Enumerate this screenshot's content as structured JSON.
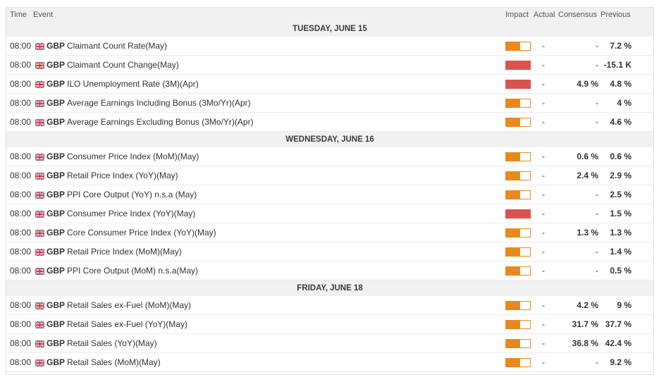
{
  "headers": {
    "time": "Time",
    "event": "Event",
    "impact": "Impact",
    "actual": "Actual",
    "consensus": "Consensus",
    "previous": "Previous"
  },
  "colors": {
    "medium_impact": "#e8891e",
    "high_impact": "#d9534f"
  },
  "flag_icon": "uk-flag-icon",
  "days": [
    {
      "label": "TUESDAY, JUNE 15",
      "events": [
        {
          "time": "08:00",
          "currency": "GBP",
          "name": "Claimant Count Rate(May)",
          "impact": "medium",
          "impact_level": 0.6,
          "actual": "-",
          "consensus": "-",
          "previous": "7.2 %"
        },
        {
          "time": "08:00",
          "currency": "GBP",
          "name": "Claimant Count Change(May)",
          "impact": "high",
          "impact_level": 1,
          "actual": "-",
          "consensus": "-",
          "previous": "-15.1 K"
        },
        {
          "time": "08:00",
          "currency": "GBP",
          "name": "ILO Unemployment Rate (3M)(Apr)",
          "impact": "high",
          "impact_level": 1,
          "actual": "-",
          "consensus": "4.9 %",
          "previous": "4.8 %"
        },
        {
          "time": "08:00",
          "currency": "GBP",
          "name": "Average Earnings Including Bonus (3Mo/Yr)(Apr)",
          "impact": "medium",
          "impact_level": 0.6,
          "actual": "-",
          "consensus": "-",
          "previous": "4 %"
        },
        {
          "time": "08:00",
          "currency": "GBP",
          "name": "Average Earnings Excluding Bonus (3Mo/Yr)(Apr)",
          "impact": "medium",
          "impact_level": 0.6,
          "actual": "-",
          "consensus": "-",
          "previous": "4.6 %"
        }
      ]
    },
    {
      "label": "WEDNESDAY, JUNE 16",
      "events": [
        {
          "time": "08:00",
          "currency": "GBP",
          "name": "Consumer Price Index (MoM)(May)",
          "impact": "medium",
          "impact_level": 0.6,
          "actual": "-",
          "consensus": "0.6 %",
          "previous": "0.6 %"
        },
        {
          "time": "08:00",
          "currency": "GBP",
          "name": "Retail Price Index (YoY)(May)",
          "impact": "medium",
          "impact_level": 0.6,
          "actual": "-",
          "consensus": "2.4 %",
          "previous": "2.9 %"
        },
        {
          "time": "08:00",
          "currency": "GBP",
          "name": "PPI Core Output (YoY) n.s.a (May)",
          "impact": "medium",
          "impact_level": 0.6,
          "actual": "-",
          "consensus": "-",
          "previous": "2.5 %"
        },
        {
          "time": "08:00",
          "currency": "GBP",
          "name": "Consumer Price Index (YoY)(May)",
          "impact": "high",
          "impact_level": 1,
          "actual": "-",
          "consensus": "-",
          "previous": "1.5 %"
        },
        {
          "time": "08:00",
          "currency": "GBP",
          "name": "Core Consumer Price Index (YoY)(May)",
          "impact": "medium",
          "impact_level": 0.6,
          "actual": "-",
          "consensus": "1.3 %",
          "previous": "1.3 %"
        },
        {
          "time": "08:00",
          "currency": "GBP",
          "name": "Retail Price Index (MoM)(May)",
          "impact": "medium",
          "impact_level": 0.6,
          "actual": "-",
          "consensus": "-",
          "previous": "1.4 %"
        },
        {
          "time": "08:00",
          "currency": "GBP",
          "name": "PPI Core Output (MoM) n.s.a(May)",
          "impact": "medium",
          "impact_level": 0.6,
          "actual": "-",
          "consensus": "-",
          "previous": "0.5 %"
        }
      ]
    },
    {
      "label": "FRIDAY, JUNE 18",
      "events": [
        {
          "time": "08:00",
          "currency": "GBP",
          "name": "Retail Sales ex-Fuel (MoM)(May)",
          "impact": "medium",
          "impact_level": 0.6,
          "actual": "-",
          "consensus": "4.2 %",
          "previous": "9 %"
        },
        {
          "time": "08:00",
          "currency": "GBP",
          "name": "Retail Sales ex-Fuel (YoY)(May)",
          "impact": "medium",
          "impact_level": 0.6,
          "actual": "-",
          "consensus": "31.7 %",
          "previous": "37.7 %"
        },
        {
          "time": "08:00",
          "currency": "GBP",
          "name": "Retail Sales (YoY)(May)",
          "impact": "medium",
          "impact_level": 0.6,
          "actual": "-",
          "consensus": "36.8 %",
          "previous": "42.4 %"
        },
        {
          "time": "08:00",
          "currency": "GBP",
          "name": "Retail Sales (MoM)(May)",
          "impact": "medium",
          "impact_level": 0.6,
          "actual": "-",
          "consensus": "-",
          "previous": "9.2 %"
        }
      ]
    }
  ]
}
